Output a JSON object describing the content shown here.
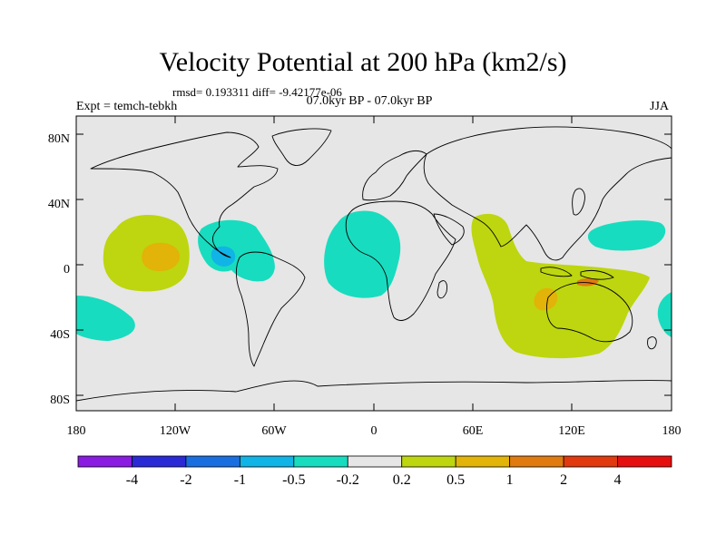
{
  "header": {
    "title": "Velocity Potential at 200 hPa (km2/s)",
    "stats": "rmsd= 0.193311 diff= -9.42177e-06",
    "experiment": "Expt = temch-tebkh",
    "case": "07.0kyr BP - 07.0kyr BP",
    "season": "JJA"
  },
  "axes": {
    "lat_labels": [
      "80N",
      "40N",
      "0",
      "40S",
      "80S"
    ],
    "lon_labels": [
      "180",
      "120W",
      "60W",
      "0",
      "60E",
      "120E",
      "180"
    ]
  },
  "colorbar": {
    "colors": [
      "#8a1be0",
      "#2a2ad6",
      "#1a6fe0",
      "#10b4e6",
      "#18dcbf",
      "#e6e6e6",
      "#bdd60f",
      "#e2b308",
      "#e07b10",
      "#e03a0e",
      "#e60f0f"
    ],
    "labels": [
      "-4",
      "-2",
      "-1",
      "-0.5",
      "-0.2",
      "0.2",
      "0.5",
      "1",
      "2",
      "4"
    ]
  },
  "legend_colors": {
    "background": "#e6e6e6",
    "neg_weak": "#18dcbf",
    "neg_mid": "#10b4e6",
    "pos_weak": "#bdd60f",
    "pos_mid": "#e2b308",
    "pos_strong": "#e07b10"
  }
}
